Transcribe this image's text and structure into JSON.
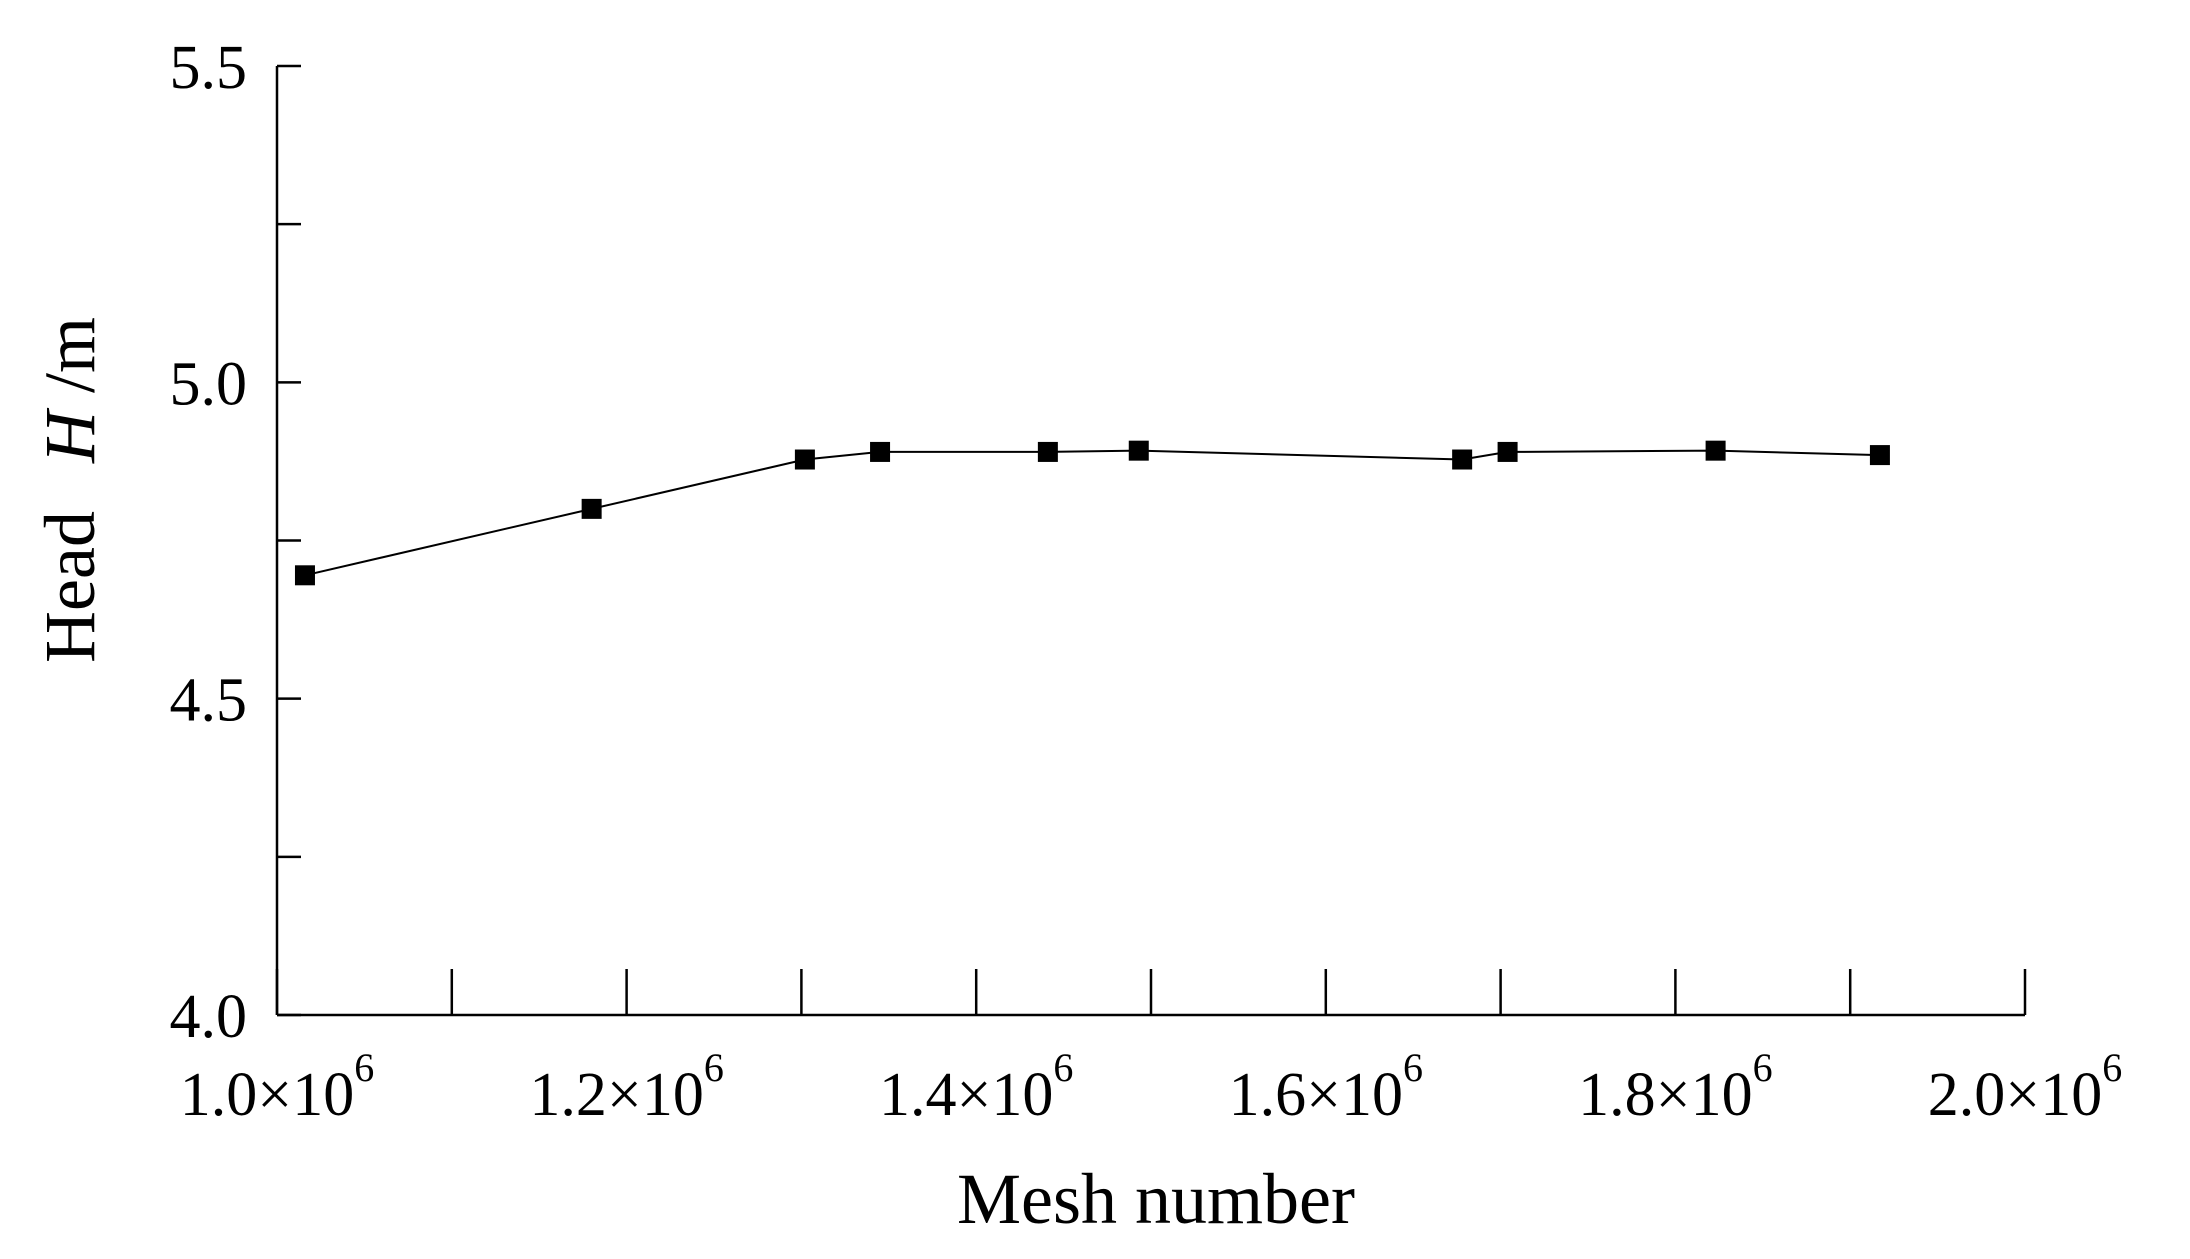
{
  "chart_data": {
    "type": "line",
    "title": "",
    "xlabel": "Mesh number",
    "ylabel": {
      "prefix": "Head",
      "symbol": "H",
      "suffix": "/m"
    },
    "xlim": [
      1000000,
      2000000
    ],
    "ylim": [
      4.0,
      5.5
    ],
    "x_tick_labels": [
      {
        "value": 1000000,
        "mantissa": "1.0×10",
        "exponent": "6"
      },
      {
        "value": 1200000,
        "mantissa": "1.2×10",
        "exponent": "6"
      },
      {
        "value": 1400000,
        "mantissa": "1.4×10",
        "exponent": "6"
      },
      {
        "value": 1600000,
        "mantissa": "1.6×10",
        "exponent": "6"
      },
      {
        "value": 1800000,
        "mantissa": "1.8×10",
        "exponent": "6"
      },
      {
        "value": 2000000,
        "mantissa": "2.0×10",
        "exponent": "6"
      }
    ],
    "x_ticks": [
      1000000,
      1100000,
      1200000,
      1300000,
      1400000,
      1500000,
      1600000,
      1700000,
      1800000,
      1900000,
      2000000
    ],
    "y_tick_labels": [
      {
        "value": 4.0,
        "label": "4.0"
      },
      {
        "value": 4.5,
        "label": "4.5"
      },
      {
        "value": 5.0,
        "label": "5.0"
      },
      {
        "value": 5.5,
        "label": "5.5"
      }
    ],
    "y_ticks": [
      4.0,
      4.25,
      4.5,
      4.75,
      5.0,
      5.25,
      5.5
    ],
    "grid": false,
    "marker": "square",
    "line_color": "#000000",
    "marker_color": "#000000",
    "series": [
      {
        "x": [
          1016000,
          1180000,
          1302000,
          1345000,
          1441000,
          1493000,
          1678000,
          1704000,
          1823000,
          1917000
        ],
        "y": [
          4.695,
          4.8,
          4.878,
          4.89,
          4.89,
          4.892,
          4.878,
          4.89,
          4.892,
          4.885
        ]
      }
    ]
  }
}
